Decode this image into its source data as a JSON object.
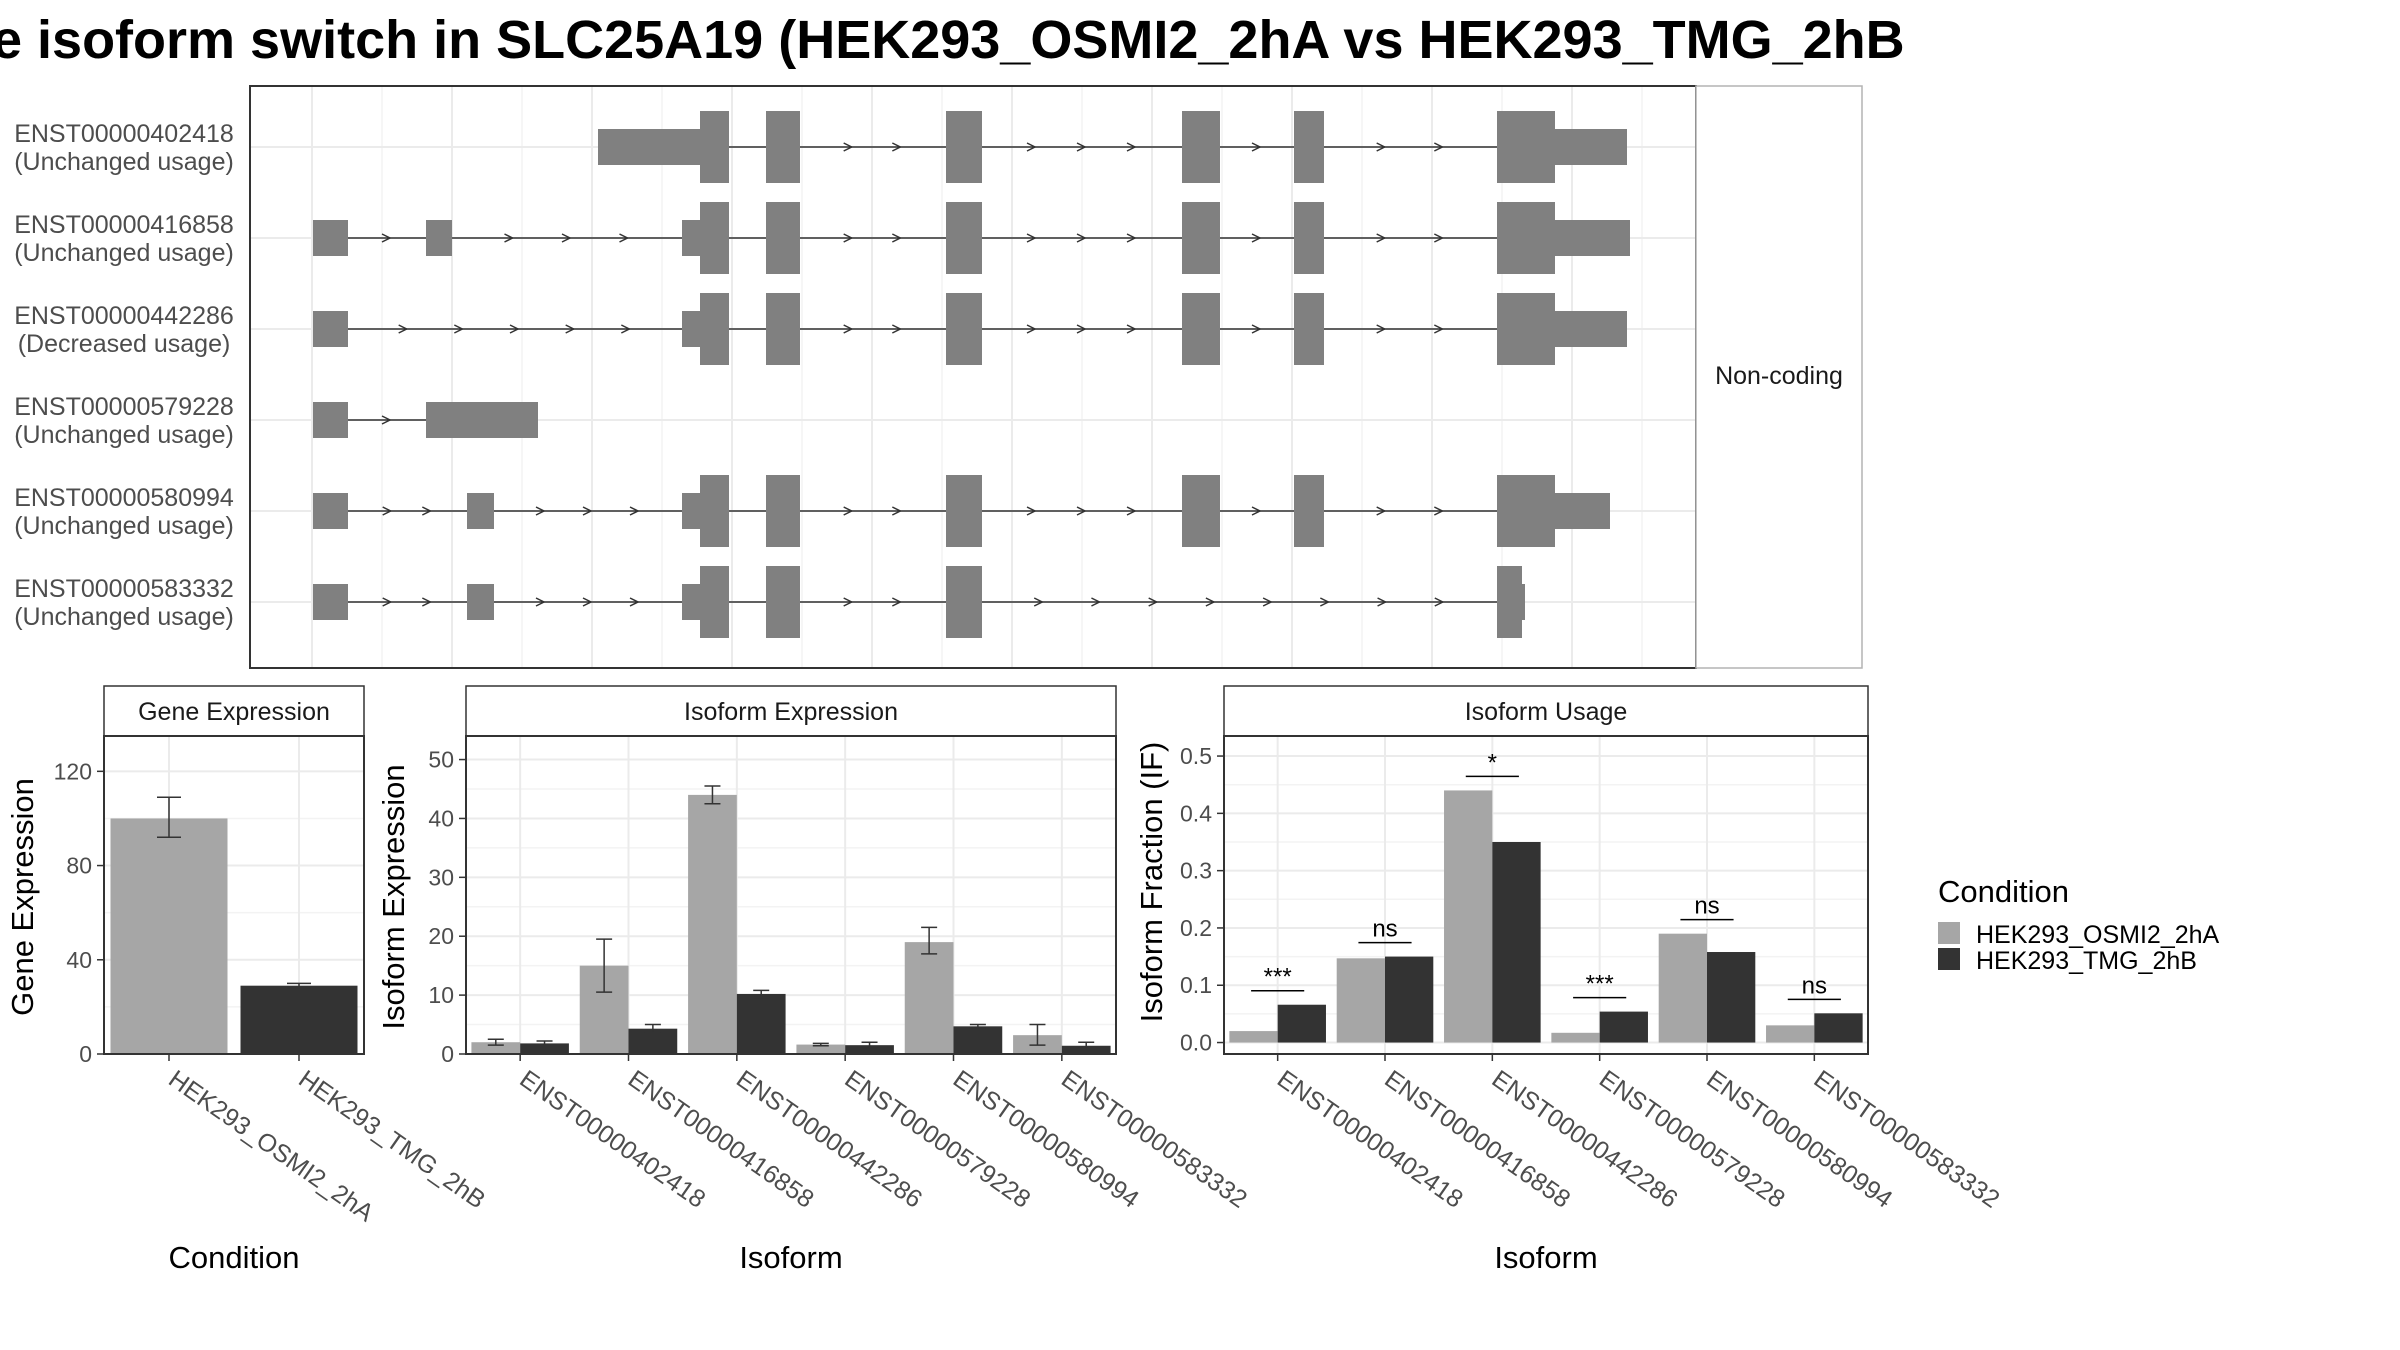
{
  "title": "e isoform switch in SLC25A19 (HEK293_OSMI2_2hA vs HEK293_TMG_2hB",
  "colors": {
    "exon": "#808080",
    "cond_a": "#a6a6a6",
    "cond_b": "#333333",
    "grid": "#ebebeb",
    "panel_border": "#333333",
    "strip_fill": "#ffffff"
  },
  "structure": {
    "facet_label": "Non-coding",
    "transcripts": [
      {
        "id": "ENST00000402418",
        "usage": "(Unchanged usage)"
      },
      {
        "id": "ENST00000416858",
        "usage": "(Unchanged usage)"
      },
      {
        "id": "ENST00000442286",
        "usage": "(Decreased usage)"
      },
      {
        "id": "ENST00000579228",
        "usage": "(Unchanged usage)"
      },
      {
        "id": "ENST00000580994",
        "usage": "(Unchanged usage)"
      },
      {
        "id": "ENST00000583332",
        "usage": "(Unchanged usage)"
      }
    ]
  },
  "legend": {
    "title": "Condition",
    "items": [
      "HEK293_OSMI2_2hA",
      "HEK293_TMG_2hB"
    ]
  },
  "chart_data": [
    {
      "type": "bar",
      "title": "Gene Expression",
      "xlabel": "Condition",
      "ylabel": "Gene Expression",
      "ylim": [
        0,
        135
      ],
      "yticks": [
        0,
        40,
        80,
        120
      ],
      "categories": [
        "HEK293_OSMI2_2hA",
        "HEK293_TMG_2hB"
      ],
      "values": [
        100,
        29
      ],
      "errors": [
        [
          92,
          109
        ],
        [
          28,
          30
        ]
      ],
      "grid": true
    },
    {
      "type": "bar",
      "title": "Isoform Expression",
      "xlabel": "Isoform",
      "ylabel": "Isoform Expression",
      "ylim": [
        0,
        54
      ],
      "yticks": [
        0,
        10,
        20,
        30,
        40,
        50
      ],
      "categories": [
        "ENST00000402418",
        "ENST00000416858",
        "ENST00000442286",
        "ENST00000579228",
        "ENST00000580994",
        "ENST00000583332"
      ],
      "series": [
        {
          "name": "HEK293_OSMI2_2hA",
          "values": [
            2.0,
            15.0,
            44.0,
            1.6,
            19.0,
            3.2
          ],
          "errors": [
            [
              1.5,
              2.5
            ],
            [
              10.5,
              19.5
            ],
            [
              42.5,
              45.5
            ],
            [
              1.4,
              1.8
            ],
            [
              17.0,
              21.5
            ],
            [
              1.5,
              5.0
            ]
          ]
        },
        {
          "name": "HEK293_TMG_2hB",
          "values": [
            1.8,
            4.3,
            10.2,
            1.5,
            4.7,
            1.4
          ],
          "errors": [
            [
              1.4,
              2.2
            ],
            [
              3.6,
              5.0
            ],
            [
              9.6,
              10.8
            ],
            [
              1.0,
              2.0
            ],
            [
              4.4,
              5.0
            ],
            [
              0.8,
              2.0
            ]
          ]
        }
      ],
      "grid": true
    },
    {
      "type": "bar",
      "title": "Isoform Usage",
      "xlabel": "Isoform",
      "ylabel": "Isoform Fraction (IF)",
      "ylim": [
        -0.02,
        0.535
      ],
      "yticks": [
        0.0,
        0.1,
        0.2,
        0.3,
        0.4,
        0.5
      ],
      "yticklabels": [
        "0.0",
        "0.1",
        "0.2",
        "0.3",
        "0.4",
        "0.5"
      ],
      "categories": [
        "ENST00000402418",
        "ENST00000416858",
        "ENST00000442286",
        "ENST00000579228",
        "ENST00000580994",
        "ENST00000583332"
      ],
      "series": [
        {
          "name": "HEK293_OSMI2_2hA",
          "values": [
            0.02,
            0.147,
            0.44,
            0.017,
            0.19,
            0.03
          ]
        },
        {
          "name": "HEK293_TMG_2hB",
          "values": [
            0.066,
            0.15,
            0.35,
            0.054,
            0.158,
            0.051
          ]
        }
      ],
      "significance": [
        "***",
        "ns",
        "*",
        "***",
        "ns",
        "ns"
      ],
      "grid": true
    }
  ]
}
